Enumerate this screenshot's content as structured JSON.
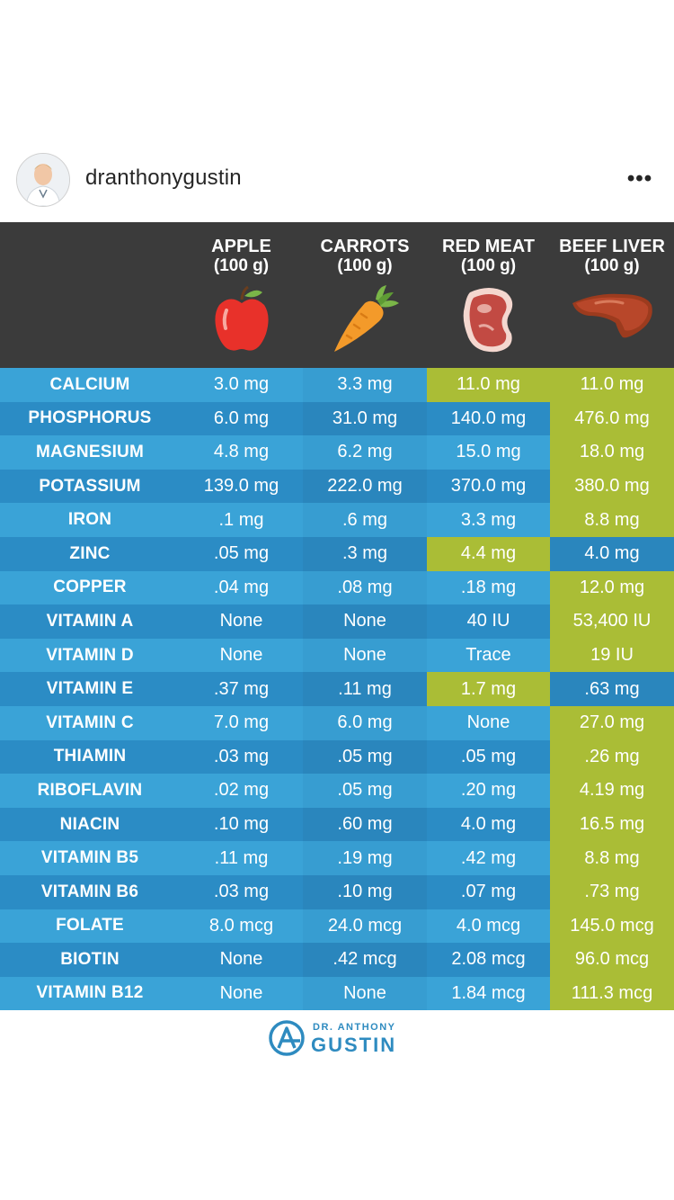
{
  "post": {
    "username": "dranthonygustin",
    "more_label": "•••"
  },
  "columns": [
    {
      "name": "APPLE",
      "unit": "(100 g)",
      "icon": "apple-icon"
    },
    {
      "name": "CARROTS",
      "unit": "(100 g)",
      "icon": "carrot-icon"
    },
    {
      "name": "RED MEAT",
      "unit": "(100 g)",
      "icon": "steak-icon"
    },
    {
      "name": "BEEF LIVER",
      "unit": "(100 g)",
      "icon": "liver-icon"
    }
  ],
  "colors": {
    "blue_light": "#3aa3d7",
    "blue_dark": "#2b8cc5",
    "highlight": "#aabd36",
    "header_bg": "#3b3b3b"
  },
  "rows": [
    {
      "label": "CALCIUM",
      "values": [
        "3.0 mg",
        "3.3 mg",
        "11.0 mg",
        "11.0 mg"
      ],
      "highlight": [
        false,
        false,
        true,
        true
      ]
    },
    {
      "label": "PHOSPHORUS",
      "values": [
        "6.0 mg",
        "31.0 mg",
        "140.0 mg",
        "476.0 mg"
      ],
      "highlight": [
        false,
        false,
        false,
        true
      ]
    },
    {
      "label": "MAGNESIUM",
      "values": [
        "4.8 mg",
        "6.2 mg",
        "15.0 mg",
        "18.0 mg"
      ],
      "highlight": [
        false,
        false,
        false,
        true
      ]
    },
    {
      "label": "POTASSIUM",
      "values": [
        "139.0 mg",
        "222.0 mg",
        "370.0 mg",
        "380.0 mg"
      ],
      "highlight": [
        false,
        false,
        false,
        true
      ]
    },
    {
      "label": "IRON",
      "values": [
        ".1 mg",
        ".6 mg",
        "3.3 mg",
        "8.8 mg"
      ],
      "highlight": [
        false,
        false,
        false,
        true
      ]
    },
    {
      "label": "ZINC",
      "values": [
        ".05 mg",
        ".3 mg",
        "4.4 mg",
        "4.0 mg"
      ],
      "highlight": [
        false,
        false,
        true,
        false
      ]
    },
    {
      "label": "COPPER",
      "values": [
        ".04 mg",
        ".08 mg",
        ".18 mg",
        "12.0 mg"
      ],
      "highlight": [
        false,
        false,
        false,
        true
      ]
    },
    {
      "label": "VITAMIN A",
      "values": [
        "None",
        "None",
        "40 IU",
        "53,400 IU"
      ],
      "highlight": [
        false,
        false,
        false,
        true
      ]
    },
    {
      "label": "VITAMIN D",
      "values": [
        "None",
        "None",
        "Trace",
        "19 IU"
      ],
      "highlight": [
        false,
        false,
        false,
        true
      ]
    },
    {
      "label": "VITAMIN E",
      "values": [
        ".37 mg",
        ".11 mg",
        "1.7 mg",
        ".63 mg"
      ],
      "highlight": [
        false,
        false,
        true,
        false
      ]
    },
    {
      "label": "VITAMIN C",
      "values": [
        "7.0 mg",
        "6.0 mg",
        "None",
        "27.0 mg"
      ],
      "highlight": [
        false,
        false,
        false,
        true
      ]
    },
    {
      "label": "THIAMIN",
      "values": [
        ".03 mg",
        ".05 mg",
        ".05 mg",
        ".26 mg"
      ],
      "highlight": [
        false,
        false,
        false,
        true
      ]
    },
    {
      "label": "RIBOFLAVIN",
      "values": [
        ".02 mg",
        ".05 mg",
        ".20 mg",
        "4.19 mg"
      ],
      "highlight": [
        false,
        false,
        false,
        true
      ]
    },
    {
      "label": "NIACIN",
      "values": [
        ".10 mg",
        ".60 mg",
        "4.0 mg",
        "16.5 mg"
      ],
      "highlight": [
        false,
        false,
        false,
        true
      ]
    },
    {
      "label": "VITAMIN B5",
      "values": [
        ".11 mg",
        ".19 mg",
        ".42 mg",
        "8.8 mg"
      ],
      "highlight": [
        false,
        false,
        false,
        true
      ]
    },
    {
      "label": "VITAMIN B6",
      "values": [
        ".03 mg",
        ".10 mg",
        ".07 mg",
        ".73 mg"
      ],
      "highlight": [
        false,
        false,
        false,
        true
      ]
    },
    {
      "label": "FOLATE",
      "values": [
        "8.0 mcg",
        "24.0 mcg",
        "4.0 mcg",
        "145.0 mcg"
      ],
      "highlight": [
        false,
        false,
        false,
        true
      ]
    },
    {
      "label": "BIOTIN",
      "values": [
        "None",
        ".42 mcg",
        "2.08 mcg",
        "96.0 mcg"
      ],
      "highlight": [
        false,
        false,
        false,
        true
      ]
    },
    {
      "label": "VITAMIN B12",
      "values": [
        "None",
        "None",
        "1.84 mcg",
        "111.3 mcg"
      ],
      "highlight": [
        false,
        false,
        false,
        true
      ]
    }
  ],
  "footer": {
    "logo_small": "DR. ANTHONY",
    "logo_big": "GUSTIN"
  }
}
